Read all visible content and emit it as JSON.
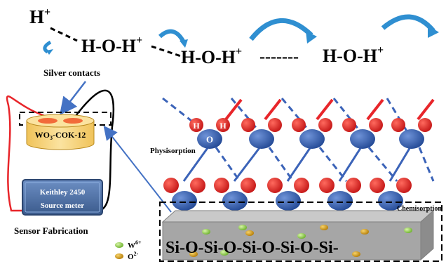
{
  "chain": {
    "h_plus": "H",
    "h_plus_charge": "+",
    "hoh_1": "H-O-H",
    "hoh_1_charge": "+",
    "hoh_2": "H-O-H",
    "hoh_2_charge": "+",
    "dashes": "-------",
    "hoh_3": "H-O-H",
    "hoh_3_charge": "+"
  },
  "sensor": {
    "contacts_label": "Silver contacts",
    "pellet_label_main": "WO",
    "pellet_label_sub": "3",
    "pellet_label_rest": "-COK-12",
    "meter_line1": "Keithley 2450",
    "meter_line2": "Source meter",
    "caption": "Sensor Fabrication"
  },
  "surface": {
    "physisorption_label": "Physisorption",
    "chemisorption_label": "Chemisorption",
    "h_atom": "H",
    "o_atom": "O",
    "backbone": "Si-O-Si-O-Si-O-Si-O-Si-"
  },
  "legend": {
    "w_label": "W",
    "w_sup": "6+",
    "o_label": "O",
    "o_sup": "2-"
  },
  "colors": {
    "oxygen": "#3b63b8",
    "hydrogen": "#e8252a",
    "bond_red": "#e8252a",
    "arrow_blue": "#2f8fd1",
    "pointer_blue": "#4472c4",
    "slab_top": "#c9c9c9",
    "slab_front": "#a6a6a6",
    "pillar": "#7030a0",
    "w_ion": "#8fd14f",
    "o_ion": "#d9a21b",
    "pellet": "#f4d27a",
    "contact": "#f26b3a",
    "meter": "#4a6fa5"
  }
}
